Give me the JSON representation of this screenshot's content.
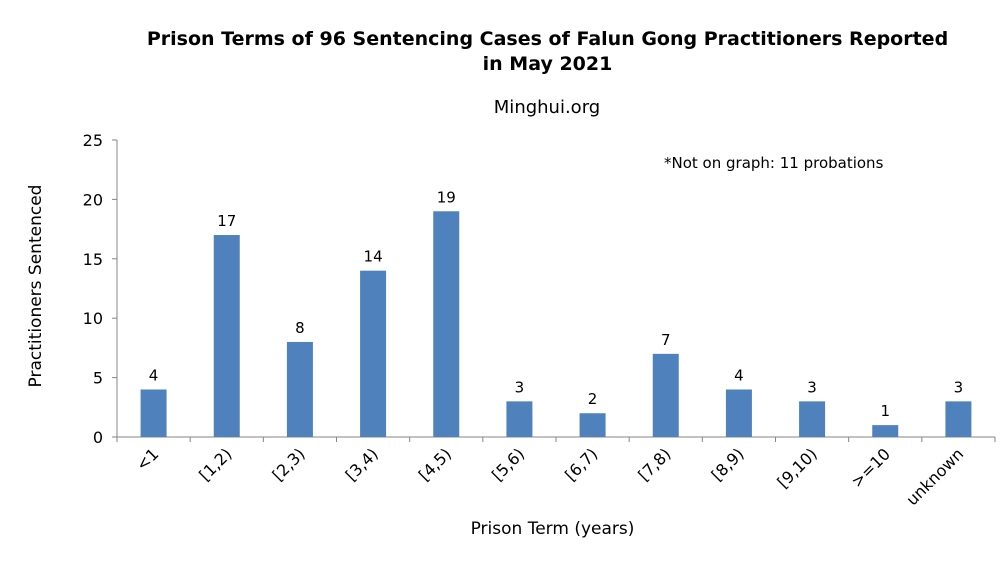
{
  "chart_data": {
    "type": "bar",
    "title": "Prison Terms of 96 Sentencing Cases of Falun Gong Practitioners Reported in May 2021",
    "title_lines": [
      "Prison Terms of 96 Sentencing Cases of Falun Gong Practitioners Reported",
      "in May 2021"
    ],
    "subtitle": "Minghui.org",
    "annotation": "*Not on graph: 11 probations",
    "xlabel": "Prison Term (years)",
    "ylabel": "Practitioners Sentenced",
    "categories": [
      "<1",
      "[1,2)",
      "[2,3)",
      "[3,4)",
      "[4,5)",
      "[5,6)",
      "[6,7)",
      "[7,8)",
      "[8,9)",
      "[9,10)",
      ">=10",
      "unknown"
    ],
    "values": [
      4,
      17,
      8,
      14,
      19,
      3,
      2,
      7,
      4,
      3,
      1,
      3
    ],
    "ylim": [
      0,
      25
    ],
    "yticks": [
      0,
      5,
      10,
      15,
      20,
      25
    ],
    "grid": false,
    "legend": "none",
    "bar_color": "#4F81BD"
  }
}
